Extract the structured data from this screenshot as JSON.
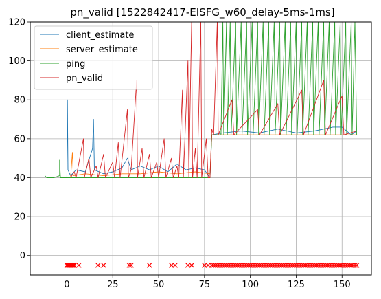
{
  "chart_data": {
    "type": "line",
    "title": "pn_valid [1522842417-EISFG_w60_delay-5ms-1ms]",
    "xlabel": "",
    "ylabel": "",
    "xlim": [
      -20,
      166
    ],
    "ylim": [
      -10,
      120
    ],
    "xticks": [
      0,
      25,
      50,
      75,
      100,
      125,
      150
    ],
    "yticks": [
      0,
      20,
      40,
      60,
      80,
      100,
      120
    ],
    "grid": true,
    "legend_position": "top-left",
    "series": [
      {
        "name": "client_estimate",
        "color": "#1f77b4",
        "description_points": [
          [
            0,
            40
          ],
          [
            0.3,
            80
          ],
          [
            0.6,
            44
          ],
          [
            2,
            41
          ],
          [
            5,
            44
          ],
          [
            10,
            43
          ],
          [
            14,
            55
          ],
          [
            14.5,
            70
          ],
          [
            15,
            44
          ],
          [
            20,
            42
          ],
          [
            25,
            43
          ],
          [
            30,
            45
          ],
          [
            33,
            50
          ],
          [
            35,
            44
          ],
          [
            40,
            46
          ],
          [
            45,
            44
          ],
          [
            50,
            46
          ],
          [
            55,
            43
          ],
          [
            60,
            47
          ],
          [
            65,
            44
          ],
          [
            70,
            45
          ],
          [
            75,
            44
          ],
          [
            78,
            40
          ],
          [
            79,
            62
          ],
          [
            85,
            63
          ],
          [
            95,
            64
          ],
          [
            105,
            63
          ],
          [
            115,
            65
          ],
          [
            125,
            63
          ],
          [
            135,
            64
          ],
          [
            145,
            66
          ],
          [
            150,
            66
          ],
          [
            155,
            62
          ],
          [
            158,
            64
          ]
        ],
        "points": [
          [
            0,
            40
          ],
          [
            0.3,
            80
          ],
          [
            0.6,
            44
          ],
          [
            2,
            41
          ],
          [
            5,
            44
          ],
          [
            10,
            43
          ],
          [
            14,
            55
          ],
          [
            14.5,
            70
          ],
          [
            15,
            44
          ],
          [
            20,
            42
          ],
          [
            25,
            43
          ],
          [
            30,
            45
          ],
          [
            33,
            50
          ],
          [
            35,
            44
          ],
          [
            40,
            46
          ],
          [
            45,
            44
          ],
          [
            50,
            46
          ],
          [
            55,
            43
          ],
          [
            60,
            47
          ],
          [
            65,
            44
          ],
          [
            70,
            45
          ],
          [
            75,
            44
          ],
          [
            78,
            40
          ],
          [
            79,
            62
          ],
          [
            85,
            63
          ],
          [
            95,
            64
          ],
          [
            105,
            63
          ],
          [
            115,
            65
          ],
          [
            125,
            63
          ],
          [
            135,
            64
          ],
          [
            145,
            66
          ],
          [
            150,
            66
          ],
          [
            155,
            62
          ],
          [
            158,
            64
          ]
        ]
      },
      {
        "name": "server_estimate",
        "color": "#ff7f0e",
        "points": [
          [
            2,
            40
          ],
          [
            3,
            53
          ],
          [
            3.5,
            41
          ],
          [
            10,
            42
          ],
          [
            20,
            41
          ],
          [
            30,
            42
          ],
          [
            40,
            42
          ],
          [
            50,
            43
          ],
          [
            60,
            42
          ],
          [
            70,
            43
          ],
          [
            78,
            42
          ],
          [
            79,
            62
          ],
          [
            100,
            62
          ],
          [
            130,
            62
          ],
          [
            158,
            62
          ]
        ]
      },
      {
        "name": "ping",
        "color": "#2ca02c",
        "points": [
          [
            -12,
            41
          ],
          [
            -11,
            40
          ],
          [
            -7,
            40
          ],
          [
            -4,
            41
          ],
          [
            -4,
            49
          ],
          [
            -3.5,
            40
          ],
          [
            0,
            40
          ],
          [
            20,
            40
          ],
          [
            40,
            40
          ],
          [
            60,
            40
          ],
          [
            78,
            40
          ],
          [
            79,
            62
          ],
          [
            84,
            62
          ],
          [
            85,
            120
          ],
          [
            85.5,
            62
          ],
          [
            87,
            120
          ],
          [
            87.5,
            62
          ],
          [
            89,
            120
          ],
          [
            89.5,
            62
          ],
          [
            92,
            120
          ],
          [
            92.5,
            62
          ],
          [
            95,
            120
          ],
          [
            95.5,
            62
          ],
          [
            98,
            120
          ],
          [
            98.5,
            62
          ],
          [
            101,
            120
          ],
          [
            101.5,
            62
          ],
          [
            104,
            120
          ],
          [
            104.5,
            62
          ],
          [
            107,
            120
          ],
          [
            107.5,
            62
          ],
          [
            110,
            120
          ],
          [
            110.5,
            62
          ],
          [
            113,
            120
          ],
          [
            113.5,
            62
          ],
          [
            116,
            120
          ],
          [
            116.5,
            62
          ],
          [
            119,
            120
          ],
          [
            119.5,
            62
          ],
          [
            122,
            120
          ],
          [
            122.5,
            62
          ],
          [
            125,
            120
          ],
          [
            125.5,
            62
          ],
          [
            128,
            120
          ],
          [
            128.5,
            62
          ],
          [
            131,
            120
          ],
          [
            131.5,
            62
          ],
          [
            134,
            120
          ],
          [
            134.5,
            62
          ],
          [
            137,
            120
          ],
          [
            137.5,
            62
          ],
          [
            140,
            120
          ],
          [
            140.5,
            62
          ],
          [
            143,
            120
          ],
          [
            143.5,
            62
          ],
          [
            146,
            120
          ],
          [
            146.5,
            62
          ],
          [
            149,
            120
          ],
          [
            149.5,
            62
          ],
          [
            152,
            120
          ],
          [
            152.5,
            62
          ],
          [
            155,
            120
          ],
          [
            155.5,
            62
          ],
          [
            157,
            120
          ],
          [
            158,
            62
          ]
        ]
      },
      {
        "name": "pn_valid",
        "color": "#d62728",
        "points": [
          [
            2,
            40
          ],
          [
            4,
            43
          ],
          [
            5,
            40
          ],
          [
            9,
            60
          ],
          [
            9.5,
            40
          ],
          [
            12,
            50
          ],
          [
            13,
            40
          ],
          [
            16,
            46
          ],
          [
            17,
            40
          ],
          [
            20,
            52
          ],
          [
            21,
            40
          ],
          [
            25,
            48
          ],
          [
            26,
            40
          ],
          [
            28,
            58
          ],
          [
            29,
            40
          ],
          [
            33,
            75
          ],
          [
            33.5,
            40
          ],
          [
            35,
            44
          ],
          [
            38,
            90
          ],
          [
            38.5,
            40
          ],
          [
            41,
            55
          ],
          [
            42,
            40
          ],
          [
            45,
            52
          ],
          [
            46,
            40
          ],
          [
            49,
            48
          ],
          [
            50,
            40
          ],
          [
            53,
            60
          ],
          [
            54,
            40
          ],
          [
            57,
            50
          ],
          [
            58,
            40
          ],
          [
            60,
            46
          ],
          [
            61,
            40
          ],
          [
            63,
            85
          ],
          [
            63.5,
            40
          ],
          [
            66,
            100
          ],
          [
            66.5,
            40
          ],
          [
            68,
            120
          ],
          [
            68.5,
            40
          ],
          [
            70,
            55
          ],
          [
            71,
            40
          ],
          [
            73,
            120
          ],
          [
            73.5,
            40
          ],
          [
            76,
            60
          ],
          [
            77,
            40
          ],
          [
            78,
            40
          ],
          [
            79,
            65
          ],
          [
            80,
            62
          ],
          [
            82,
            120
          ],
          [
            82.5,
            62
          ],
          [
            90,
            80
          ],
          [
            91,
            62
          ],
          [
            104,
            75
          ],
          [
            105,
            62
          ],
          [
            115,
            78
          ],
          [
            116,
            62
          ],
          [
            128,
            85
          ],
          [
            129,
            62
          ],
          [
            140,
            90
          ],
          [
            141,
            62
          ],
          [
            150,
            82
          ],
          [
            151,
            62
          ],
          [
            158,
            64
          ]
        ]
      },
      {
        "name": "",
        "color": "#ff0000",
        "marker": "x",
        "y": -5,
        "x_values": [
          0,
          0.5,
          1,
          1.5,
          2,
          2.5,
          3,
          3.5,
          4,
          6.5,
          17,
          20,
          34,
          35,
          45,
          57,
          59,
          66,
          68,
          75,
          77,
          79,
          80,
          81,
          82,
          83,
          84,
          85,
          86,
          87,
          88,
          89,
          90,
          91,
          92,
          93,
          94,
          95,
          96,
          97,
          98,
          99,
          100,
          101,
          102,
          103,
          104,
          105,
          106,
          107,
          108,
          109,
          110,
          111,
          112,
          113,
          114,
          115,
          116,
          117,
          118,
          119,
          120,
          121,
          122,
          123,
          124,
          125,
          126,
          127,
          128,
          129,
          130,
          131,
          132,
          133,
          134,
          135,
          136,
          137,
          138,
          139,
          140,
          141,
          142,
          143,
          144,
          145,
          146,
          147,
          148,
          149,
          150,
          151,
          152,
          153,
          154,
          155,
          156,
          157,
          158
        ]
      }
    ],
    "legend": [
      {
        "label": "client_estimate",
        "color": "#1f77b4"
      },
      {
        "label": "server_estimate",
        "color": "#ff7f0e"
      },
      {
        "label": "ping",
        "color": "#2ca02c"
      },
      {
        "label": "pn_valid",
        "color": "#d62728"
      }
    ],
    "axes_color": "#000000",
    "grid_color": "#b0b0b0"
  }
}
